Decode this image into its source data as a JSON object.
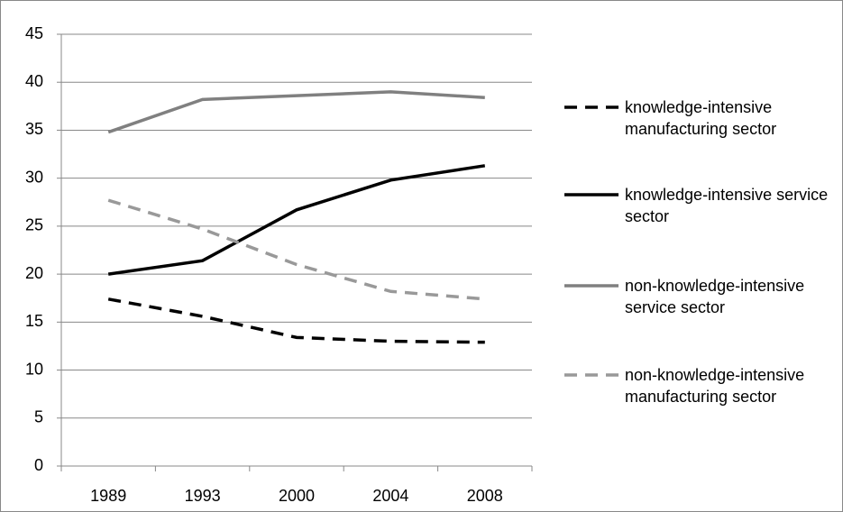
{
  "chart_data": {
    "type": "line",
    "categories": [
      "1989",
      "1993",
      "2000",
      "2004",
      "2008"
    ],
    "series": [
      {
        "name": "knowledge-intensive manufacturing sector",
        "color": "#000000",
        "line_style": "dashed",
        "values": [
          17.4,
          15.6,
          13.4,
          13.0,
          12.9
        ]
      },
      {
        "name": "knowledge-intensive service sector",
        "color": "#000000",
        "line_style": "solid",
        "values": [
          20.0,
          21.4,
          26.7,
          29.8,
          31.3
        ]
      },
      {
        "name": "non-knowledge-intensive service sector",
        "color": "#808080",
        "line_style": "solid",
        "values": [
          34.8,
          38.2,
          38.6,
          39.0,
          38.4
        ]
      },
      {
        "name": "non-knowledge-intensive manufacturing sector",
        "color": "#999999",
        "line_style": "dashed",
        "values": [
          27.7,
          24.7,
          21.0,
          18.2,
          17.4
        ]
      }
    ],
    "ylim": [
      0,
      45
    ],
    "yticks": [
      0,
      5,
      10,
      15,
      20,
      25,
      30,
      35,
      40,
      45
    ],
    "grid": true,
    "legend": "right"
  }
}
